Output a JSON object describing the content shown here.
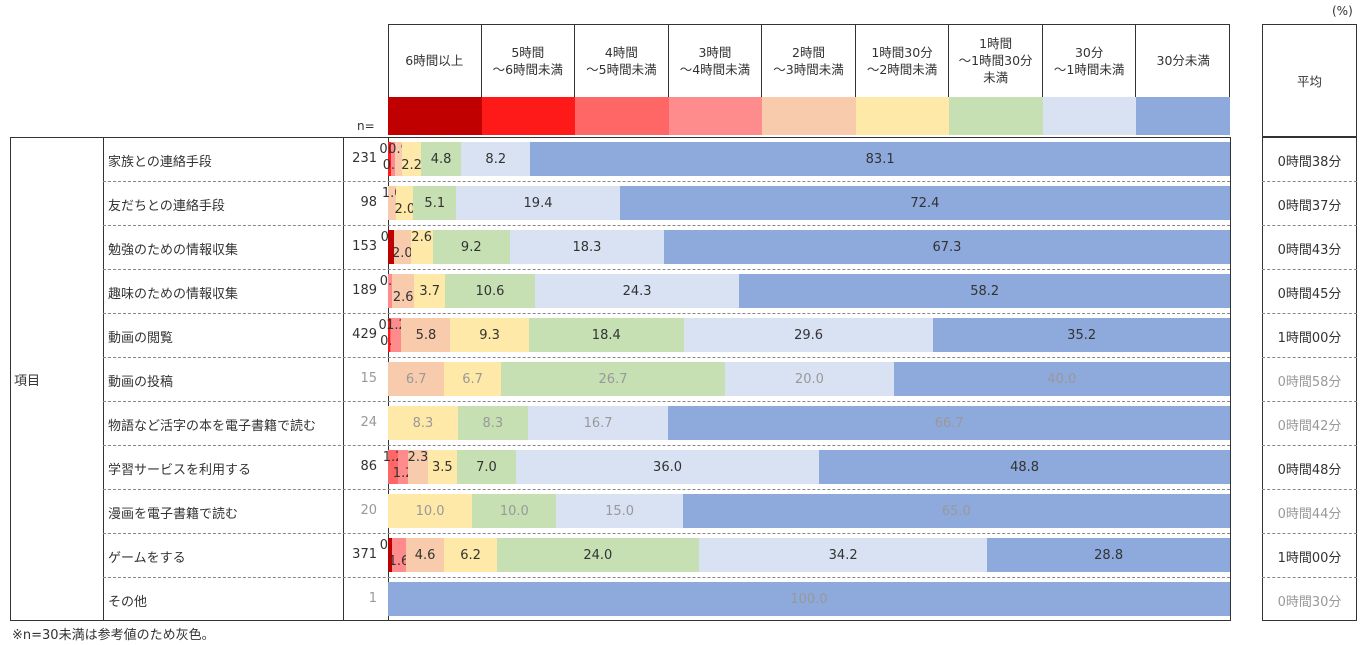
{
  "chart_data": {
    "type": "bar",
    "orientation": "horizontal-stacked-100",
    "unit_label": "(%)",
    "n_label": "n=",
    "group_label": "項目",
    "avg_header": "平均",
    "footnote": "※n=30未満は参考値のため灰色。",
    "gray_threshold_n": 30,
    "categories_legend": [
      {
        "label": "6時間以上",
        "color": "#C00000"
      },
      {
        "label": "5時間\n～6時間未満",
        "color": "#FF1A1A"
      },
      {
        "label": "4時間\n～5時間未満",
        "color": "#FF6666"
      },
      {
        "label": "3時間\n～4時間未満",
        "color": "#FF8C8C"
      },
      {
        "label": "2時間\n～3時間未満",
        "color": "#F8CBAD"
      },
      {
        "label": "1時間30分\n～2時間未満",
        "color": "#FFE9A8"
      },
      {
        "label": "1時間\n～1時間30分\n未満",
        "color": "#C6E0B4"
      },
      {
        "label": "30分\n～1時間未満",
        "color": "#D9E2F3"
      },
      {
        "label": "30分未満",
        "color": "#8EA9DB"
      }
    ],
    "series_order": [
      "6時間以上",
      "5時間～6時間未満",
      "4時間～5時間未満",
      "3時間～4時間未満",
      "2時間～3時間未満",
      "1時間30分～2時間未満",
      "1時間～1時間30分未満",
      "30分～1時間未満",
      "30分未満"
    ],
    "rows": [
      {
        "item": "家族との連絡手段",
        "n": "231",
        "avg": "0時間38分",
        "values": [
          0,
          0.4,
          0,
          0.4,
          0.9,
          2.2,
          4.8,
          8.2,
          83.1
        ]
      },
      {
        "item": "友だちとの連絡手段",
        "n": "98",
        "avg": "0時間37分",
        "values": [
          0,
          0,
          0,
          0,
          1.0,
          2.0,
          5.1,
          19.4,
          72.4
        ]
      },
      {
        "item": "勉強のための情報収集",
        "n": "153",
        "avg": "0時間43分",
        "values": [
          0.7,
          0,
          0,
          0,
          2.0,
          2.6,
          9.2,
          18.3,
          67.3
        ]
      },
      {
        "item": "趣味のための情報収集",
        "n": "189",
        "avg": "0時間45分",
        "values": [
          0,
          0,
          0,
          0.5,
          2.6,
          3.7,
          10.6,
          24.3,
          58.2
        ]
      },
      {
        "item": "動画の閲覧",
        "n": "429",
        "avg": "1時間00分",
        "values": [
          0,
          0.2,
          0.2,
          1.2,
          5.8,
          9.3,
          18.4,
          29.6,
          35.2
        ]
      },
      {
        "item": "動画の投稿",
        "n": "15",
        "avg": "0時間58分",
        "values": [
          0,
          0,
          0,
          0,
          6.7,
          6.7,
          26.7,
          20.0,
          40.0
        ]
      },
      {
        "item": "物語など活字の本を電子書籍で読む",
        "n": "24",
        "avg": "0時間42分",
        "values": [
          0,
          0,
          0,
          0,
          0,
          8.3,
          8.3,
          16.7,
          66.7
        ]
      },
      {
        "item": "学習サービスを利用する",
        "n": "86",
        "avg": "0時間48分",
        "values": [
          0,
          0,
          1.2,
          1.2,
          2.3,
          3.5,
          7.0,
          36.0,
          48.8
        ]
      },
      {
        "item": "漫画を電子書籍で読む",
        "n": "20",
        "avg": "0時間44分",
        "values": [
          0,
          0,
          0,
          0,
          0,
          10.0,
          10.0,
          15.0,
          65.0
        ]
      },
      {
        "item": "ゲームをする",
        "n": "371",
        "avg": "1時間00分",
        "values": [
          0.5,
          0,
          0,
          1.6,
          4.6,
          6.2,
          24.0,
          34.2,
          28.8
        ]
      },
      {
        "item": "その他",
        "n": "1",
        "avg": "0時間30分",
        "values": [
          0,
          0,
          0,
          0,
          0,
          0,
          0,
          0,
          100.0
        ]
      }
    ]
  }
}
